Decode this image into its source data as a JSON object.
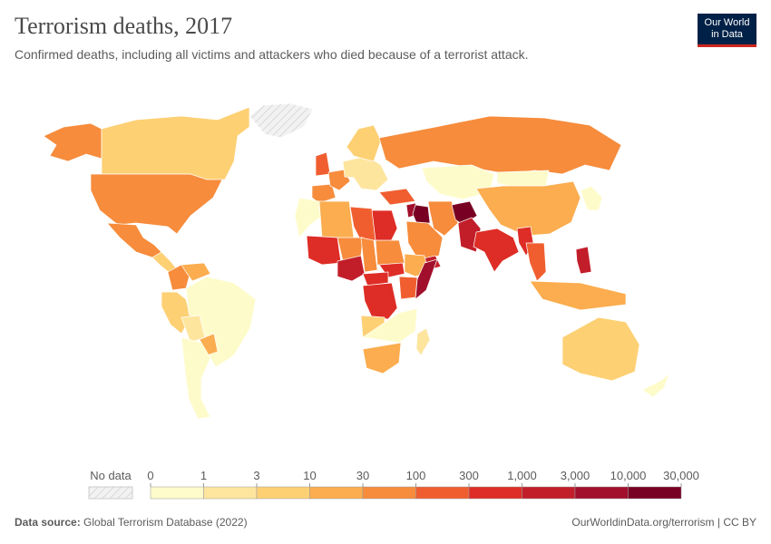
{
  "header": {
    "title": "Terrorism deaths, 2017",
    "subtitle": "Confirmed deaths, including all victims and attackers who died because of a terrorist attack.",
    "logo_line1": "Our World",
    "logo_line2": "in Data"
  },
  "legend": {
    "no_data_label": "No data",
    "ticks": [
      "0",
      "1",
      "3",
      "10",
      "30",
      "100",
      "300",
      "1,000",
      "3,000",
      "10,000",
      "30,000"
    ],
    "colors": [
      "#fefbcb",
      "#fde59e",
      "#fdd074",
      "#fbad4f",
      "#f68c3c",
      "#f05e30",
      "#de2d26",
      "#c21e2a",
      "#a10f2c",
      "#780022"
    ],
    "no_data_color": "#e6e6e6"
  },
  "regions": [
    {
      "name": "Alaska",
      "bin": 4
    },
    {
      "name": "Canada",
      "bin": 2
    },
    {
      "name": "Greenland",
      "bin": -1
    },
    {
      "name": "United States",
      "bin": 4
    },
    {
      "name": "Mexico",
      "bin": 4
    },
    {
      "name": "Central America",
      "bin": 2
    },
    {
      "name": "Colombia",
      "bin": 4
    },
    {
      "name": "Venezuela",
      "bin": 3
    },
    {
      "name": "Ecuador & Peru",
      "bin": 2
    },
    {
      "name": "Brazil",
      "bin": 0
    },
    {
      "name": "Paraguay",
      "bin": 3
    },
    {
      "name": "Bolivia",
      "bin": 1
    },
    {
      "name": "Argentina & Chile",
      "bin": 0
    },
    {
      "name": "United Kingdom",
      "bin": 5
    },
    {
      "name": "Spain",
      "bin": 4
    },
    {
      "name": "France",
      "bin": 4
    },
    {
      "name": "Central Europe",
      "bin": 1
    },
    {
      "name": "Scandinavia",
      "bin": 2
    },
    {
      "name": "Russia",
      "bin": 4
    },
    {
      "name": "Kazakhstan & Central Asia",
      "bin": 0
    },
    {
      "name": "Mongolia",
      "bin": 0
    },
    {
      "name": "China",
      "bin": 3
    },
    {
      "name": "Japan & Korea",
      "bin": 0
    },
    {
      "name": "Turkey",
      "bin": 5
    },
    {
      "name": "Syria",
      "bin": 8
    },
    {
      "name": "Iraq",
      "bin": 9
    },
    {
      "name": "Iran",
      "bin": 4
    },
    {
      "name": "Saudi Arabia",
      "bin": 4
    },
    {
      "name": "Yemen",
      "bin": 7
    },
    {
      "name": "Afghanistan",
      "bin": 9
    },
    {
      "name": "Pakistan",
      "bin": 7
    },
    {
      "name": "India",
      "bin": 6
    },
    {
      "name": "Myanmar",
      "bin": 6
    },
    {
      "name": "Thailand",
      "bin": 5
    },
    {
      "name": "Philippines",
      "bin": 7
    },
    {
      "name": "Indonesia",
      "bin": 3
    },
    {
      "name": "Morocco",
      "bin": 0
    },
    {
      "name": "Algeria",
      "bin": 3
    },
    {
      "name": "Libya",
      "bin": 5
    },
    {
      "name": "Egypt",
      "bin": 6
    },
    {
      "name": "Mali",
      "bin": 6
    },
    {
      "name": "Niger",
      "bin": 4
    },
    {
      "name": "Nigeria",
      "bin": 7
    },
    {
      "name": "Chad",
      "bin": 4
    },
    {
      "name": "Sudan",
      "bin": 4
    },
    {
      "name": "South Sudan",
      "bin": 6
    },
    {
      "name": "Ethiopia",
      "bin": 3
    },
    {
      "name": "Somalia",
      "bin": 8
    },
    {
      "name": "Central African Republic",
      "bin": 6
    },
    {
      "name": "DR Congo",
      "bin": 6
    },
    {
      "name": "Kenya",
      "bin": 5
    },
    {
      "name": "Angola",
      "bin": 2
    },
    {
      "name": "Southern Africa",
      "bin": 0
    },
    {
      "name": "South Africa",
      "bin": 3
    },
    {
      "name": "Madagascar",
      "bin": 1
    },
    {
      "name": "Australia",
      "bin": 2
    },
    {
      "name": "New Zealand",
      "bin": 0
    }
  ],
  "footer": {
    "source_label": "Data source:",
    "source_text": "Global Terrorism Database (2022)",
    "url_text": "OurWorldinData.org/terrorism | CC BY"
  }
}
